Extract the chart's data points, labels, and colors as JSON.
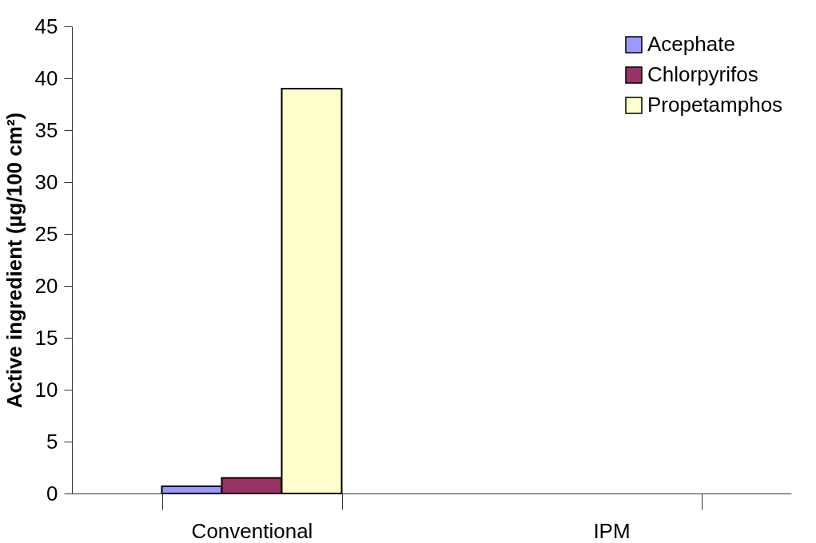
{
  "chart_data": {
    "type": "bar",
    "ylabel": "Active ingredient (µg/100 cm²)",
    "categories": [
      "Conventional",
      "IPM"
    ],
    "series": [
      {
        "name": "Acephate",
        "color": "#9999ff",
        "values": [
          0.7,
          null
        ]
      },
      {
        "name": "Chlorpyrifos",
        "color": "#993366",
        "values": [
          1.5,
          null
        ]
      },
      {
        "name": "Propetamphos",
        "color": "#ffffcc",
        "values": [
          39,
          null
        ]
      }
    ],
    "ylim": [
      0,
      45
    ],
    "yticks": [
      0,
      5,
      10,
      15,
      20,
      25,
      30,
      35,
      40,
      45
    ],
    "grid": false,
    "legend": "top right"
  }
}
